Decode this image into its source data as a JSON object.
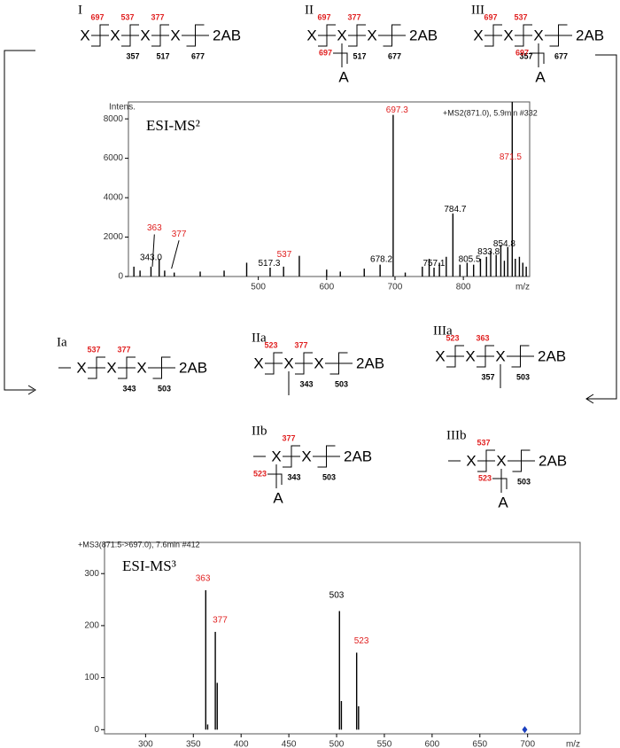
{
  "chart_data": [
    {
      "type": "stem",
      "title": "ESI-MS²",
      "y_label": "Intens.",
      "header": "+MS2(871.0), 5.9min #332",
      "x_label": "m/z",
      "x": [
        318,
        327,
        343,
        355,
        363,
        377,
        415,
        450,
        483,
        517.3,
        537,
        560,
        600,
        620,
        655,
        678.2,
        697.3,
        715,
        740,
        750,
        757.1,
        765,
        775,
        784.7,
        795,
        805.5,
        815,
        825,
        833.8,
        840,
        848,
        854.8,
        860,
        865,
        871.5,
        876,
        882,
        887,
        892
      ],
      "values": [
        500,
        300,
        500,
        900,
        300,
        200,
        250,
        300,
        700,
        450,
        500,
        1050,
        350,
        250,
        400,
        600,
        8200,
        200,
        500,
        900,
        450,
        700,
        1000,
        3200,
        600,
        700,
        600,
        900,
        1000,
        1300,
        1100,
        1600,
        800,
        1500,
        8860,
        900,
        1000,
        700,
        500
      ],
      "color": "#000000",
      "xlim": [
        310,
        897
      ],
      "ylim": [
        0,
        8860
      ],
      "xticks": [
        500,
        600,
        700,
        800
      ],
      "yticks": [
        0,
        2000,
        4000,
        6000,
        8000
      ],
      "annotations": [
        {
          "text": "343.0",
          "x": 343,
          "y": 950,
          "color": "#000000"
        },
        {
          "text": "363",
          "x": 348,
          "y": 2450,
          "color": "#e02020",
          "to": [
            345,
            500
          ]
        },
        {
          "text": "377",
          "x": 384,
          "y": 2150,
          "color": "#e02020",
          "to": [
            373,
            400
          ]
        },
        {
          "text": "517.3",
          "x": 516,
          "y": 650,
          "color": "#000000"
        },
        {
          "text": "537",
          "x": 538,
          "y": 1100,
          "color": "#e02020"
        },
        {
          "text": "678.2",
          "x": 680,
          "y": 850,
          "color": "#000000"
        },
        {
          "text": "697.3",
          "x": 703,
          "y": 8450,
          "color": "#e02020"
        },
        {
          "text": "757.1",
          "x": 757,
          "y": 650,
          "color": "#000000"
        },
        {
          "text": "784.7",
          "x": 788,
          "y": 3400,
          "color": "#000000"
        },
        {
          "text": "805.5",
          "x": 809,
          "y": 850,
          "color": "#000000"
        },
        {
          "text": "833.8",
          "x": 837,
          "y": 1250,
          "color": "#000000"
        },
        {
          "text": "854.8",
          "x": 860,
          "y": 1650,
          "color": "#000000"
        },
        {
          "text": "871.5",
          "x": 869,
          "y": 6050,
          "color": "#e02020"
        }
      ]
    },
    {
      "type": "stem",
      "title": "ESI-MS³",
      "header": "+MS3(871.5->697.0), 7.6min #412",
      "x_label": "m/z",
      "x": [
        363,
        365,
        373,
        375,
        503,
        505,
        521,
        523
      ],
      "values": [
        268,
        10,
        188,
        90,
        228,
        55,
        148,
        45
      ],
      "color": "#888888",
      "xlim": [
        257,
        755
      ],
      "ylim": [
        -8,
        360
      ],
      "xticks": [
        300,
        350,
        400,
        450,
        500,
        550,
        600,
        650,
        700
      ],
      "yticks": [
        0,
        100,
        200,
        300
      ],
      "markers": [
        {
          "x": 697,
          "y": 0,
          "color": "#1a3fbf",
          "shape": "diamond"
        }
      ],
      "annotations": [
        {
          "text": "363",
          "x": 360,
          "y": 290,
          "color": "#e02020"
        },
        {
          "text": "377",
          "x": 378,
          "y": 210,
          "color": "#e02020"
        },
        {
          "text": "503",
          "x": 500,
          "y": 258,
          "color": "#000000"
        },
        {
          "text": "523",
          "x": 526,
          "y": 170,
          "color": "#e02020"
        }
      ]
    }
  ],
  "structures": [
    {
      "label": "I",
      "units": [
        "X",
        "X",
        "X",
        "X",
        "2AB"
      ],
      "top": [
        "697",
        "537",
        "377",
        null
      ],
      "bottom": [
        null,
        "357",
        "517",
        "677"
      ]
    },
    {
      "label": "II",
      "units": [
        "X",
        "X",
        "X",
        "2AB"
      ],
      "top": [
        "697",
        "377",
        null
      ],
      "bottom": [
        null,
        "517",
        "677"
      ],
      "branch": {
        "at": 1,
        "frag": "697",
        "label": "A"
      }
    },
    {
      "label": "III",
      "units": [
        "X",
        "X",
        "X",
        "2AB"
      ],
      "top": [
        "697",
        "537",
        null
      ],
      "bottom": [
        null,
        "357",
        "677"
      ],
      "branch": {
        "at": 2,
        "frag": "697",
        "label": "A"
      }
    },
    {
      "label": "Ia",
      "lead": true,
      "units": [
        "X",
        "X",
        "X",
        "2AB"
      ],
      "top": [
        "537",
        "377",
        null
      ],
      "bottom": [
        null,
        "343",
        "503"
      ]
    },
    {
      "label": "IIa",
      "units": [
        "X",
        "X",
        "X",
        "2AB"
      ],
      "top": [
        "523",
        "377",
        null
      ],
      "bottom": [
        null,
        "343",
        "503"
      ],
      "branch": {
        "at": 1
      }
    },
    {
      "label": "IIIa",
      "units": [
        "X",
        "X",
        "X",
        "2AB"
      ],
      "top": [
        "523",
        "363",
        null
      ],
      "bottom": [
        null,
        "357",
        "503"
      ],
      "branch": {
        "at": 2
      }
    },
    {
      "label": "IIb",
      "lead": true,
      "units": [
        "X",
        "X",
        "2AB"
      ],
      "top": [
        "377",
        null
      ],
      "bottom": [
        "343",
        "503"
      ],
      "branch": {
        "at": 0,
        "frag": "523",
        "label": "A"
      }
    },
    {
      "label": "IIIb",
      "lead": true,
      "units": [
        "X",
        "X",
        "2AB"
      ],
      "top": [
        "537",
        null
      ],
      "bottom": [
        null,
        "503"
      ],
      "branch": {
        "at": 1,
        "frag": "523",
        "label": "A"
      }
    }
  ]
}
